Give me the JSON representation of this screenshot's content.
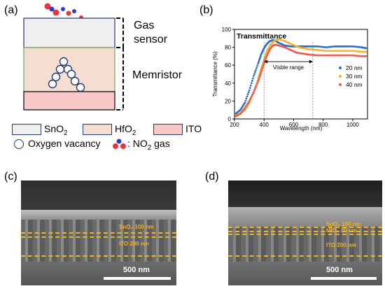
{
  "panels": {
    "a": "(a)",
    "b": "(b)",
    "c": "(c)",
    "d": "(d)"
  },
  "device": {
    "gas_sensor_label_line1": "Gas",
    "gas_sensor_label_line2": "sensor",
    "memristor_label": "Memristor"
  },
  "legend": {
    "sno2": "SnO",
    "sno2_sub": "2",
    "hfo2": "HfO",
    "hfo2_sub": "2",
    "ito": "ITO",
    "vacancy": "Oxygen vacancy",
    "no2_prefix": ": NO",
    "no2_sub": "2",
    "no2_suffix": " gas"
  },
  "colors": {
    "sno2": "#efefef",
    "hfo2": "#f6ddd2",
    "ito": "#f8c8c8",
    "blue": "#2a6fc2",
    "orange": "#f2b233",
    "red": "#ef5a4d",
    "no2_red": "#e8343c",
    "no2_blue": "#2a3fbf",
    "sem_text": "#f0b323"
  },
  "chart_data": {
    "type": "line",
    "title": "Transmittance",
    "xlabel": "Wavelength (nm)",
    "ylabel": "Transmittance (%)",
    "xlim": [
      200,
      1100
    ],
    "ylim": [
      0,
      100
    ],
    "xticks": [
      200,
      400,
      600,
      800,
      1000
    ],
    "yticks": [
      0,
      20,
      40,
      60,
      80,
      100
    ],
    "annotation": "Visble range",
    "visible_range": [
      400,
      730
    ],
    "series": [
      {
        "name": "20 nm",
        "color": "#2a6fc2",
        "x": [
          210,
          240,
          270,
          300,
          330,
          360,
          380,
          400,
          420,
          440,
          460,
          480,
          500,
          540,
          580,
          620,
          660,
          700,
          760,
          820,
          880,
          940,
          1000,
          1060,
          1090
        ],
        "y": [
          6,
          10,
          18,
          32,
          48,
          62,
          72,
          79,
          84,
          87,
          88,
          87,
          85,
          82,
          81,
          81,
          81,
          81,
          81,
          80,
          81,
          81,
          81,
          80,
          79
        ]
      },
      {
        "name": "30 nm",
        "color": "#f2b233",
        "x": [
          210,
          240,
          270,
          300,
          330,
          360,
          380,
          400,
          420,
          440,
          460,
          480,
          500,
          540,
          580,
          620,
          660,
          700,
          760,
          820,
          880,
          940,
          1000,
          1060,
          1090
        ],
        "y": [
          4,
          6,
          10,
          18,
          30,
          45,
          56,
          66,
          76,
          82,
          86,
          88,
          89,
          87,
          84,
          81,
          79,
          78,
          77,
          76,
          76,
          76,
          76,
          75,
          75
        ]
      },
      {
        "name": "40 nm",
        "color": "#ef5a4d",
        "x": [
          210,
          240,
          270,
          300,
          330,
          360,
          380,
          400,
          420,
          440,
          460,
          480,
          500,
          540,
          580,
          620,
          660,
          700,
          760,
          820,
          880,
          940,
          1000,
          1060,
          1090
        ],
        "y": [
          3,
          6,
          12,
          20,
          30,
          42,
          52,
          62,
          71,
          78,
          82,
          83,
          82,
          80,
          77,
          74,
          73,
          72,
          71,
          71,
          71,
          71,
          71,
          70,
          70
        ]
      }
    ]
  },
  "sem_c": {
    "sno2_label": "SnO₂ 100 nm",
    "ito_label": "ITO 200 nm",
    "scale": "500 nm"
  },
  "sem_d": {
    "sno2_label": "SnO₂ 100 nm",
    "hfo2_label": "HfO₂ 30 nm",
    "ito_label": "ITO 200 nm",
    "scale": "500 nm"
  }
}
